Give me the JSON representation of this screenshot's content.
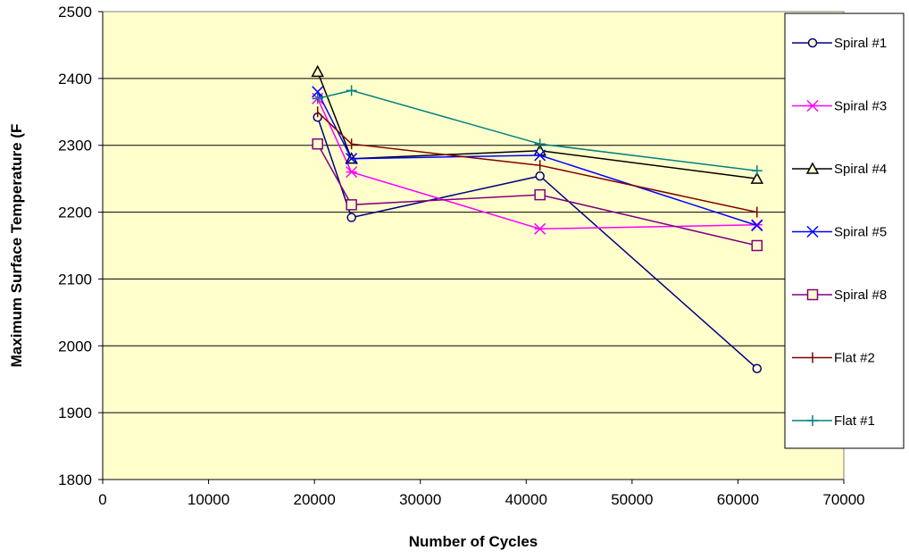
{
  "chart_data": {
    "type": "scatter",
    "title": "",
    "xlabel": "Number of Cycles",
    "ylabel": "Maximum Surface Temperature (F",
    "xlim": [
      0,
      70000
    ],
    "ylim": [
      1800,
      2500
    ],
    "xticks": [
      0,
      10000,
      20000,
      30000,
      40000,
      50000,
      60000,
      70000
    ],
    "yticks": [
      1800,
      1900,
      2000,
      2100,
      2200,
      2300,
      2400,
      2500
    ],
    "x_tick_labels": [
      "0",
      "10000",
      "20000",
      "30000",
      "40000",
      "50000",
      "60000",
      "70000"
    ],
    "y_tick_labels": [
      "1800",
      "1900",
      "2000",
      "2100",
      "2200",
      "2300",
      "2400",
      "2500"
    ],
    "grid": "horizontal",
    "plot_background": "#ffffcc",
    "legend_position": "right",
    "series": [
      {
        "name": "Spiral #1",
        "color": "#000080",
        "marker": "circle",
        "x": [
          20300,
          23500,
          41300,
          61800
        ],
        "y": [
          2342,
          2192,
          2254,
          1966
        ]
      },
      {
        "name": "Spiral #3",
        "color": "#ff00ff",
        "marker": "asterisk",
        "x": [
          20300,
          23500,
          41300,
          61800
        ],
        "y": [
          2370,
          2260,
          2175,
          2181
        ]
      },
      {
        "name": "Spiral #4",
        "color": "#000000",
        "marker": "triangle",
        "x": [
          20300,
          23500,
          41300,
          61800
        ],
        "y": [
          2410,
          2280,
          2292,
          2250
        ]
      },
      {
        "name": "Spiral #5",
        "color": "#0000ff",
        "marker": "x",
        "x": [
          20300,
          23500,
          41300,
          61800
        ],
        "y": [
          2380,
          2280,
          2285,
          2180
        ]
      },
      {
        "name": "Spiral #8",
        "color": "#800080",
        "marker": "square",
        "x": [
          20300,
          23500,
          41300,
          61800
        ],
        "y": [
          2302,
          2211,
          2226,
          2150
        ]
      },
      {
        "name": "Flat #2",
        "color": "#800000",
        "marker": "dash-plus",
        "x": [
          20300,
          23500,
          41300,
          61800
        ],
        "y": [
          2350,
          2302,
          2270,
          2200
        ]
      },
      {
        "name": "Flat #1",
        "color": "#008080",
        "marker": "plus",
        "x": [
          20300,
          23500,
          41300,
          61800
        ],
        "y": [
          2370,
          2382,
          2302,
          2262
        ]
      }
    ]
  }
}
